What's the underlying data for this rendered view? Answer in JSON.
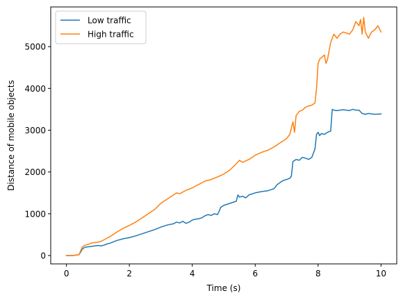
{
  "chart_data": {
    "type": "line",
    "title": "",
    "xlabel": "Time (s)",
    "ylabel": "Distance of mobile objects",
    "xlim": [
      -0.5,
      10.5
    ],
    "ylim": [
      -200,
      5950
    ],
    "xticks": [
      0,
      2,
      4,
      6,
      8,
      10
    ],
    "yticks": [
      0,
      1000,
      2000,
      3000,
      4000,
      5000
    ],
    "grid": false,
    "legend_position": "top-left",
    "series": [
      {
        "name": "Low traffic",
        "color": "#1f77b4",
        "x": [
          0.0,
          0.2,
          0.4,
          0.45,
          0.5,
          0.55,
          0.6,
          0.7,
          0.8,
          0.9,
          1.0,
          1.1,
          1.2,
          1.3,
          1.4,
          1.5,
          1.6,
          1.8,
          2.0,
          2.2,
          2.4,
          2.6,
          2.8,
          3.0,
          3.2,
          3.4,
          3.5,
          3.6,
          3.7,
          3.8,
          3.9,
          4.0,
          4.1,
          4.2,
          4.3,
          4.4,
          4.5,
          4.6,
          4.7,
          4.8,
          4.85,
          4.9,
          5.0,
          5.2,
          5.4,
          5.45,
          5.5,
          5.6,
          5.7,
          5.8,
          6.0,
          6.2,
          6.4,
          6.6,
          6.7,
          6.8,
          6.9,
          7.0,
          7.1,
          7.15,
          7.2,
          7.3,
          7.4,
          7.5,
          7.6,
          7.7,
          7.8,
          7.85,
          7.9,
          7.95,
          8.0,
          8.05,
          8.1,
          8.2,
          8.3,
          8.4,
          8.45,
          8.5,
          8.6,
          8.7,
          8.8,
          9.0,
          9.1,
          9.2,
          9.3,
          9.4,
          9.5,
          9.6,
          9.8,
          10.0
        ],
        "y": [
          0,
          0,
          20,
          80,
          150,
          180,
          200,
          210,
          220,
          230,
          240,
          230,
          250,
          280,
          300,
          330,
          360,
          400,
          430,
          470,
          520,
          570,
          620,
          680,
          730,
          760,
          800,
          780,
          820,
          770,
          800,
          850,
          870,
          880,
          900,
          950,
          980,
          960,
          1000,
          980,
          1050,
          1150,
          1200,
          1250,
          1300,
          1450,
          1400,
          1420,
          1380,
          1450,
          1500,
          1530,
          1550,
          1600,
          1700,
          1750,
          1800,
          1820,
          1850,
          1900,
          2250,
          2300,
          2280,
          2350,
          2330,
          2300,
          2350,
          2450,
          2550,
          2900,
          2950,
          2870,
          2920,
          2900,
          2950,
          2980,
          3500,
          3480,
          3470,
          3480,
          3490,
          3470,
          3500,
          3480,
          3480,
          3400,
          3380,
          3400,
          3380,
          3390
        ]
      },
      {
        "name": "High traffic",
        "color": "#ff7f0e",
        "x": [
          0.0,
          0.2,
          0.4,
          0.5,
          0.55,
          0.6,
          0.7,
          0.8,
          0.9,
          1.0,
          1.1,
          1.2,
          1.4,
          1.6,
          1.8,
          2.0,
          2.2,
          2.4,
          2.6,
          2.8,
          3.0,
          3.1,
          3.2,
          3.4,
          3.5,
          3.6,
          3.8,
          4.0,
          4.2,
          4.4,
          4.6,
          4.8,
          5.0,
          5.2,
          5.4,
          5.5,
          5.6,
          5.8,
          6.0,
          6.2,
          6.4,
          6.6,
          6.8,
          7.0,
          7.1,
          7.2,
          7.25,
          7.3,
          7.4,
          7.5,
          7.6,
          7.7,
          7.8,
          7.9,
          7.95,
          8.0,
          8.05,
          8.2,
          8.25,
          8.3,
          8.4,
          8.5,
          8.6,
          8.7,
          8.8,
          9.0,
          9.1,
          9.2,
          9.3,
          9.35,
          9.4,
          9.45,
          9.5,
          9.6,
          9.7,
          9.8,
          9.9,
          10.0
        ],
        "y": [
          0,
          0,
          20,
          200,
          230,
          250,
          270,
          300,
          310,
          320,
          340,
          380,
          460,
          560,
          650,
          720,
          800,
          900,
          1000,
          1100,
          1250,
          1300,
          1350,
          1450,
          1500,
          1480,
          1560,
          1620,
          1700,
          1780,
          1820,
          1880,
          1950,
          2050,
          2200,
          2280,
          2230,
          2300,
          2400,
          2470,
          2520,
          2600,
          2700,
          2800,
          2900,
          3200,
          2950,
          3350,
          3450,
          3480,
          3550,
          3580,
          3600,
          3650,
          4000,
          4600,
          4700,
          4800,
          4600,
          4700,
          5100,
          5300,
          5200,
          5300,
          5350,
          5300,
          5400,
          5600,
          5500,
          5650,
          5300,
          5700,
          5350,
          5200,
          5350,
          5400,
          5500,
          5350
        ]
      }
    ]
  }
}
